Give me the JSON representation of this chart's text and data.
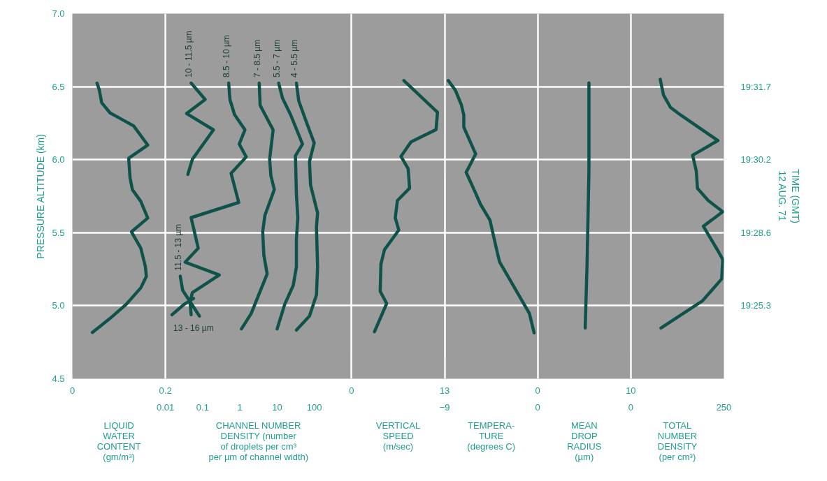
{
  "chart_data": [
    {
      "type": "line",
      "xlabel": "LIQUID\nWATER\nCONTENT\n(gm/m³)",
      "ylabel": "PRESSURE ALTITUDE (km)",
      "xlim": [
        0,
        0.2
      ],
      "xticks": [
        0,
        0.2
      ],
      "ylim": [
        4.5,
        7.0
      ],
      "yticks": [
        4.5,
        {
          "value": 5,
          "label": "5.0"
        },
        5.5,
        {
          "value": 6,
          "label": "6.0"
        },
        6.5,
        {
          "value": 7,
          "label": "7.0"
        }
      ],
      "grid": true,
      "series": [
        {
          "color": "#0f5249",
          "x": [
            0.053,
            0.058,
            0.063,
            0.081,
            0.104,
            0.132,
            0.162,
            0.121,
            0.124,
            0.129,
            0.147,
            0.162,
            0.127,
            0.147,
            0.157,
            0.159,
            0.147,
            0.116,
            0.081,
            0.043
          ],
          "values": [
            6.524,
            6.476,
            6.39,
            6.32,
            6.28,
            6.23,
            6.1,
            6.01,
            5.875,
            5.795,
            5.715,
            5.6,
            5.506,
            5.395,
            5.266,
            5.2,
            5.122,
            5.01,
            4.913,
            4.817
          ]
        }
      ]
    },
    {
      "type": "line",
      "xlabel": "CHANNEL NUMBER\nDENSITY (number\nof droplets per cm³\nper µm of channel width)",
      "xlim": [
        0.01,
        1000
      ],
      "xticks": [
        0.01,
        0.1,
        1,
        10,
        100
      ],
      "ylim": [
        4.5,
        7.0
      ],
      "log": "x",
      "grid": "y",
      "tick_labels": "x",
      "series": [
        {
          "name": "10 - 11.5 µm",
          "color": "#0f5249",
          "x": [
            0.049,
            0.117,
            0.037,
            0.195,
            0.053,
            0.04
          ],
          "values": [
            6.524,
            6.412,
            6.316,
            6.204,
            6.003,
            5.899
          ]
        },
        {
          "name": "8.5 - 10 µm",
          "color": "#0f5249",
          "x": [
            0.5,
            0.54,
            0.72,
            1.37,
            0.96,
            1.48,
            0.58,
            0.93,
            0.049,
            0.076,
            0.034,
            0.28,
            0.053,
            0.046,
            0.049
          ],
          "values": [
            6.524,
            6.412,
            6.308,
            6.204,
            6.107,
            6.019,
            5.907,
            5.707,
            5.603,
            5.394,
            5.298,
            5.21,
            5.09,
            5.026,
            4.938
          ]
        },
        {
          "name": "7 - 8.5 µm",
          "color": "#0f5249",
          "x": [
            3.3,
            3.5,
            7.8,
            6.3,
            6.8,
            8.4,
            4.7,
            4.1,
            4.4,
            5.4,
            2.0,
            1.1
          ],
          "values": [
            6.524,
            6.372,
            6.204,
            6.003,
            5.891,
            5.795,
            5.619,
            5.506,
            5.346,
            5.218,
            4.945,
            4.841
          ]
        },
        {
          "name": "5.5 - 7 µm",
          "color": "#0f5249",
          "x": [
            11,
            14,
            23,
            48,
            31,
            33,
            36,
            33,
            33,
            27,
            16,
            10
          ],
          "values": [
            6.524,
            6.42,
            6.308,
            6.107,
            6.027,
            5.763,
            5.603,
            5.458,
            5.266,
            5.138,
            5.01,
            4.841
          ]
        },
        {
          "name": "4 - 5.5 µm",
          "color": "#0f5249",
          "x": [
            33,
            38,
            64,
            99,
            74,
            79,
            122,
            114,
            122,
            114,
            74,
            33
          ],
          "values": [
            6.524,
            6.404,
            6.244,
            6.115,
            5.987,
            5.827,
            5.635,
            5.538,
            5.266,
            5.074,
            4.929,
            4.833
          ]
        },
        {
          "name": "11.5 - 13 µm",
          "color": "#0f5249",
          "x": [
            0.025,
            0.029,
            0.082
          ],
          "values": [
            5.202,
            5.106,
            4.929
          ]
        },
        {
          "name": "13 - 16 µm",
          "color": "#0f5249",
          "x": [
            0.015,
            0.032,
            0.057
          ],
          "values": [
            4.938,
            5.01,
            5.05
          ]
        }
      ]
    },
    {
      "type": "line",
      "xlabel": "VERTICAL\nSPEED\n(m/sec)",
      "xlim": [
        0,
        13
      ],
      "xticks": [
        0,
        13
      ],
      "ylim": [
        4.5,
        7.0
      ],
      "grid": true,
      "tick_labels": "x",
      "series": [
        {
          "color": "#0f5249",
          "x": [
            7.3,
            12.0,
            11.8,
            8.3,
            6.9,
            7.9,
            8.1,
            6.4,
            6.1,
            6.6,
            4.6,
            4.1,
            4.0,
            4.9,
            3.2
          ],
          "values": [
            6.542,
            6.324,
            6.206,
            6.122,
            6.022,
            5.938,
            5.804,
            5.72,
            5.602,
            5.518,
            5.384,
            5.284,
            5.099,
            5.015,
            4.822
          ]
        }
      ]
    },
    {
      "type": "line",
      "xlabel": "TEMPERA-\nTURE\n(degrees C)",
      "xlim": [
        -9,
        0
      ],
      "xticks": [
        {
          "value": -9,
          "label": "−9"
        },
        0
      ],
      "ylim": [
        4.5,
        7.0
      ],
      "grid": true,
      "tick_labels": "x",
      "series": [
        {
          "color": "#0f5249",
          "x": [
            -8.65,
            -7.96,
            -7.38,
            -7.15,
            -7.15,
            -6.0,
            -6.92,
            -6.0,
            -5.54,
            -4.62,
            -3.92,
            -3.69,
            -0.81,
            -0.35
          ],
          "values": [
            6.542,
            6.475,
            6.374,
            6.307,
            6.223,
            6.039,
            5.913,
            5.77,
            5.695,
            5.586,
            5.367,
            5.3,
            4.948,
            4.814
          ]
        }
      ]
    },
    {
      "type": "line",
      "xlabel": "MEAN\nDROP\nRADIUS\n(µm)",
      "xlim": [
        0,
        10
      ],
      "xticks": [
        0,
        10
      ],
      "ylim": [
        4.5,
        7.0
      ],
      "grid": true,
      "tick_labels": "x",
      "series": [
        {
          "color": "#0f5249",
          "x": [
            5.5,
            5.5,
            5.3,
            5.1
          ],
          "values": [
            6.525,
            5.921,
            5.284,
            4.847
          ]
        }
      ]
    },
    {
      "type": "line",
      "xlabel": "TOTAL\nNUMBER\nDENSITY\n(per cm³)",
      "xlim": [
        0,
        250
      ],
      "xticks": [
        0,
        250
      ],
      "ylim": [
        4.5,
        7.0
      ],
      "grid": true,
      "tick_labels": "x",
      "y2label": "TIME (GMT)\n12 AUG. 71",
      "annotations": [
        "19:31.7",
        "19:30.2",
        "19:28.6",
        "19:25.3"
      ],
      "series": [
        {
          "color": "#0f5249",
          "x": [
            79,
            88,
            107,
            133,
            234,
            166,
            176,
            179,
            208,
            247,
            195,
            234,
            247,
            244,
            192,
            81
          ],
          "values": [
            6.55,
            6.441,
            6.357,
            6.307,
            6.131,
            6.03,
            5.921,
            5.804,
            5.72,
            5.644,
            5.544,
            5.376,
            5.317,
            5.183,
            5.032,
            4.847
          ]
        }
      ]
    }
  ]
}
